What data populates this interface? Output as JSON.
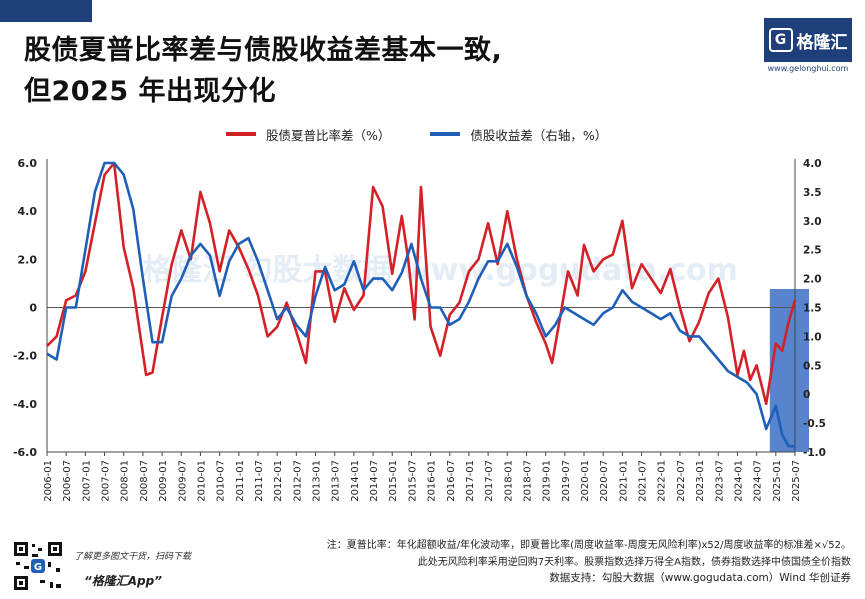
{
  "title": {
    "line1": "股债夏普比率差与债股收益差基本一致,",
    "line2": "但2025 年出现分化"
  },
  "brand": {
    "name": "格隆汇",
    "logo_letter": "G",
    "url": "www.gelonghui.com"
  },
  "footer": {
    "note_line1": "注：夏普比率：年化超额收益/年化波动率，即夏普比率(周度收益率-周度无风险利率)x52/周度收益率的标准差×√52。",
    "note_line2": "此处无风险利率采用逆回购7天利率。股票指数选择万得全A指数，债券指数选择中债国债全价指数",
    "source": "数据支持：勾股大数据（www.gogudata.com）Wind 华创证券",
    "qr_hint": "了解更多图文干货，扫码下载",
    "app_name": "“格隆汇App”"
  },
  "chart_data": {
    "type": "line",
    "title": "",
    "xlabel": "",
    "ylabel_left": "",
    "ylabel_right": "",
    "legend_position": "top",
    "grid": false,
    "x_tick_labels": [
      "2006-01",
      "2006-07",
      "2007-01",
      "2007-07",
      "2008-01",
      "2008-07",
      "2009-01",
      "2009-07",
      "2010-01",
      "2010-07",
      "2011-01",
      "2011-07",
      "2012-01",
      "2012-07",
      "2013-01",
      "2013-07",
      "2014-01",
      "2014-07",
      "2015-01",
      "2015-07",
      "2016-01",
      "2016-07",
      "2017-01",
      "2017-07",
      "2018-01",
      "2018-07",
      "2019-01",
      "2019-07",
      "2020-01",
      "2020-07",
      "2021-01",
      "2021-07",
      "2022-01",
      "2022-07",
      "2023-01",
      "2023-07",
      "2024-01",
      "2024-07",
      "2025-01",
      "2025-07"
    ],
    "x_range": [
      "2006-01",
      "2025-07"
    ],
    "left_axis": {
      "min": -6,
      "max": 6,
      "ticks": [
        "6.0",
        "4.0",
        "2.0",
        "0",
        "-2.0",
        "-4.0",
        "-6.0"
      ],
      "tick_values": [
        6,
        4,
        2,
        0,
        -2,
        -4,
        -6
      ]
    },
    "right_axis": {
      "min": -1,
      "max": 4,
      "ticks": [
        "4.0",
        "3.5",
        "3.0",
        "2.5",
        "2.0",
        "1.5",
        "1.0",
        "0.5",
        "0",
        "-0.5",
        "-1.0"
      ],
      "tick_values": [
        4,
        3.5,
        3,
        2.5,
        2,
        1.5,
        1,
        0.5,
        0,
        -0.5,
        -1
      ]
    },
    "highlight_band": {
      "from": "2025-01",
      "to": "2025-07",
      "color": "#3a6fc4"
    },
    "watermark": "格隆汇 勾股大数据 www.gogudata.com",
    "series": [
      {
        "name": "股债夏普比率差（%）",
        "axis": "left",
        "color": "#d42027",
        "points": [
          [
            "2006-01",
            -1.6
          ],
          [
            "2006-04",
            -1.2
          ],
          [
            "2006-07",
            0.3
          ],
          [
            "2006-10",
            0.5
          ],
          [
            "2007-01",
            1.5
          ],
          [
            "2007-04",
            3.5
          ],
          [
            "2007-07",
            5.5
          ],
          [
            "2007-10",
            6.0
          ],
          [
            "2008-01",
            2.5
          ],
          [
            "2008-04",
            0.8
          ],
          [
            "2008-06",
            -1.0
          ],
          [
            "2008-08",
            -2.8
          ],
          [
            "2008-10",
            -2.7
          ],
          [
            "2009-01",
            -0.4
          ],
          [
            "2009-04",
            1.8
          ],
          [
            "2009-07",
            3.2
          ],
          [
            "2009-10",
            2.0
          ],
          [
            "2010-01",
            4.8
          ],
          [
            "2010-04",
            3.5
          ],
          [
            "2010-07",
            1.5
          ],
          [
            "2010-10",
            3.2
          ],
          [
            "2011-01",
            2.5
          ],
          [
            "2011-04",
            1.6
          ],
          [
            "2011-07",
            0.5
          ],
          [
            "2011-10",
            -1.2
          ],
          [
            "2012-01",
            -0.8
          ],
          [
            "2012-04",
            0.2
          ],
          [
            "2012-07",
            -1.0
          ],
          [
            "2012-10",
            -2.3
          ],
          [
            "2013-01",
            1.5
          ],
          [
            "2013-04",
            1.5
          ],
          [
            "2013-07",
            -0.6
          ],
          [
            "2013-10",
            0.8
          ],
          [
            "2014-01",
            -0.1
          ],
          [
            "2014-04",
            0.5
          ],
          [
            "2014-07",
            5.0
          ],
          [
            "2014-10",
            4.2
          ],
          [
            "2015-01",
            1.4
          ],
          [
            "2015-04",
            3.8
          ],
          [
            "2015-06",
            2.0
          ],
          [
            "2015-08",
            -0.5
          ],
          [
            "2015-10",
            5.0
          ],
          [
            "2016-01",
            -0.8
          ],
          [
            "2016-04",
            -2.0
          ],
          [
            "2016-07",
            -0.3
          ],
          [
            "2016-10",
            0.2
          ],
          [
            "2017-01",
            1.5
          ],
          [
            "2017-04",
            2.0
          ],
          [
            "2017-07",
            3.5
          ],
          [
            "2017-10",
            1.8
          ],
          [
            "2018-01",
            4.0
          ],
          [
            "2018-04",
            2.0
          ],
          [
            "2018-07",
            0.5
          ],
          [
            "2018-10",
            -0.6
          ],
          [
            "2019-01",
            -1.5
          ],
          [
            "2019-03",
            -2.3
          ],
          [
            "2019-05",
            -0.8
          ],
          [
            "2019-08",
            1.5
          ],
          [
            "2019-11",
            0.5
          ],
          [
            "2020-01",
            2.6
          ],
          [
            "2020-04",
            1.5
          ],
          [
            "2020-07",
            2.0
          ],
          [
            "2020-10",
            2.2
          ],
          [
            "2021-01",
            3.6
          ],
          [
            "2021-04",
            0.8
          ],
          [
            "2021-07",
            1.8
          ],
          [
            "2021-10",
            1.2
          ],
          [
            "2022-01",
            0.6
          ],
          [
            "2022-04",
            1.6
          ],
          [
            "2022-07",
            0.0
          ],
          [
            "2022-10",
            -1.4
          ],
          [
            "2023-01",
            -0.6
          ],
          [
            "2023-04",
            0.6
          ],
          [
            "2023-07",
            1.2
          ],
          [
            "2023-10",
            -0.4
          ],
          [
            "2024-01",
            -2.8
          ],
          [
            "2024-03",
            -1.8
          ],
          [
            "2024-05",
            -3.0
          ],
          [
            "2024-07",
            -2.4
          ],
          [
            "2024-10",
            -4.0
          ],
          [
            "2025-01",
            -1.5
          ],
          [
            "2025-03",
            -1.8
          ],
          [
            "2025-05",
            -0.6
          ],
          [
            "2025-07",
            0.3
          ]
        ]
      },
      {
        "name": "债股收益差（右轴，%）",
        "axis": "right",
        "color": "#1f5fb8",
        "points": [
          [
            "2006-01",
            0.7
          ],
          [
            "2006-04",
            0.6
          ],
          [
            "2006-07",
            1.5
          ],
          [
            "2006-10",
            1.5
          ],
          [
            "2007-01",
            2.5
          ],
          [
            "2007-04",
            3.5
          ],
          [
            "2007-07",
            4.0
          ],
          [
            "2007-10",
            4.0
          ],
          [
            "2008-01",
            3.8
          ],
          [
            "2008-04",
            3.2
          ],
          [
            "2008-07",
            2.0
          ],
          [
            "2008-10",
            0.9
          ],
          [
            "2009-01",
            0.9
          ],
          [
            "2009-04",
            1.7
          ],
          [
            "2009-07",
            2.0
          ],
          [
            "2009-10",
            2.4
          ],
          [
            "2010-01",
            2.6
          ],
          [
            "2010-04",
            2.4
          ],
          [
            "2010-07",
            1.7
          ],
          [
            "2010-10",
            2.3
          ],
          [
            "2011-01",
            2.6
          ],
          [
            "2011-04",
            2.7
          ],
          [
            "2011-07",
            2.3
          ],
          [
            "2011-10",
            1.8
          ],
          [
            "2012-01",
            1.3
          ],
          [
            "2012-04",
            1.5
          ],
          [
            "2012-07",
            1.2
          ],
          [
            "2012-10",
            1.0
          ],
          [
            "2013-01",
            1.7
          ],
          [
            "2013-04",
            2.2
          ],
          [
            "2013-07",
            1.8
          ],
          [
            "2013-10",
            1.9
          ],
          [
            "2014-01",
            2.3
          ],
          [
            "2014-04",
            1.8
          ],
          [
            "2014-07",
            2.0
          ],
          [
            "2014-10",
            2.0
          ],
          [
            "2015-01",
            1.8
          ],
          [
            "2015-04",
            2.1
          ],
          [
            "2015-07",
            2.6
          ],
          [
            "2015-10",
            2.0
          ],
          [
            "2016-01",
            1.5
          ],
          [
            "2016-04",
            1.5
          ],
          [
            "2016-07",
            1.2
          ],
          [
            "2016-10",
            1.3
          ],
          [
            "2017-01",
            1.6
          ],
          [
            "2017-04",
            2.0
          ],
          [
            "2017-07",
            2.3
          ],
          [
            "2017-10",
            2.3
          ],
          [
            "2018-01",
            2.6
          ],
          [
            "2018-04",
            2.2
          ],
          [
            "2018-07",
            1.7
          ],
          [
            "2018-10",
            1.4
          ],
          [
            "2019-01",
            1.0
          ],
          [
            "2019-04",
            1.2
          ],
          [
            "2019-07",
            1.5
          ],
          [
            "2019-10",
            1.4
          ],
          [
            "2020-01",
            1.3
          ],
          [
            "2020-04",
            1.2
          ],
          [
            "2020-07",
            1.4
          ],
          [
            "2020-10",
            1.5
          ],
          [
            "2021-01",
            1.8
          ],
          [
            "2021-04",
            1.6
          ],
          [
            "2021-07",
            1.5
          ],
          [
            "2021-10",
            1.4
          ],
          [
            "2022-01",
            1.3
          ],
          [
            "2022-04",
            1.4
          ],
          [
            "2022-07",
            1.1
          ],
          [
            "2022-10",
            1.0
          ],
          [
            "2023-01",
            1.0
          ],
          [
            "2023-04",
            0.8
          ],
          [
            "2023-07",
            0.6
          ],
          [
            "2023-10",
            0.4
          ],
          [
            "2024-01",
            0.3
          ],
          [
            "2024-04",
            0.2
          ],
          [
            "2024-07",
            0.0
          ],
          [
            "2024-10",
            -0.6
          ],
          [
            "2025-01",
            -0.2
          ],
          [
            "2025-03",
            -0.7
          ],
          [
            "2025-05",
            -0.9
          ],
          [
            "2025-07",
            -0.9
          ]
        ]
      }
    ]
  }
}
